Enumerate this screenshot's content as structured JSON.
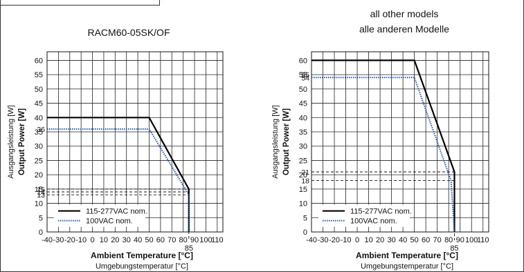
{
  "charts": [
    {
      "title_lines": [
        "RACM60-05SK/OF"
      ],
      "ylabel_lines": [
        "Output Power [W]",
        "Ausgangsleistung [W]"
      ],
      "xlabel_lines": [
        "Ambient Temperature [°C]",
        "Umgebungstemperatur [°C]"
      ],
      "xticks": [
        -40,
        -30,
        -20,
        -10,
        0,
        10,
        20,
        30,
        40,
        50,
        60,
        70,
        80,
        90,
        100,
        110
      ],
      "yticks": [
        0,
        5,
        10,
        15,
        20,
        25,
        30,
        35,
        40,
        45,
        50,
        55,
        60
      ],
      "xlim": [
        -40,
        115
      ],
      "ylim": [
        0,
        63
      ],
      "series": [
        {
          "name": "115-277VAC nom.",
          "color": "#000000",
          "style": "solid",
          "points": [
            [
              -40,
              40
            ],
            [
              50,
              40
            ],
            [
              85,
              15
            ],
            [
              85,
              0
            ]
          ]
        },
        {
          "name": "100VAC nom.",
          "color": "#1f4fb5",
          "style": "dotted",
          "points": [
            [
              -40,
              36
            ],
            [
              50,
              36
            ],
            [
              85,
              13
            ],
            [
              85,
              0
            ]
          ]
        }
      ],
      "hrefs": [
        {
          "y": 15,
          "label": "15",
          "to_x": 85
        },
        {
          "y": 14,
          "label": "14",
          "to_x": 85
        },
        {
          "y": 13,
          "label": "13",
          "to_x": 85
        }
      ],
      "side_labels": [
        {
          "y": 36,
          "label": "36"
        }
      ],
      "vref": {
        "x": 85,
        "label": "85"
      }
    },
    {
      "title_lines": [
        "all other models",
        "alle anderen Modelle"
      ],
      "ylabel_lines": [
        "Output Power [W]",
        "Ausgangsleistung [W]"
      ],
      "xlabel_lines": [
        "Ambient Temperature [°C]",
        "Umgebungstemperatur [°C]"
      ],
      "xticks": [
        -40,
        -30,
        -20,
        -10,
        0,
        10,
        20,
        30,
        40,
        50,
        60,
        70,
        80,
        90,
        100,
        110
      ],
      "yticks": [
        0,
        5,
        10,
        15,
        20,
        25,
        30,
        35,
        40,
        45,
        50,
        55,
        60
      ],
      "xlim": [
        -40,
        115
      ],
      "ylim": [
        0,
        63
      ],
      "series": [
        {
          "name": "115-277VAC nom.",
          "color": "#000000",
          "style": "solid",
          "points": [
            [
              -40,
              60
            ],
            [
              50,
              60
            ],
            [
              85,
              21
            ],
            [
              85,
              0
            ]
          ]
        },
        {
          "name": "100VAC nom.",
          "color": "#1f4fb5",
          "style": "dotted",
          "points": [
            [
              -40,
              54
            ],
            [
              50,
              54
            ],
            [
              82,
              18
            ],
            [
              85,
              0
            ]
          ]
        }
      ],
      "hrefs": [
        {
          "y": 21,
          "label": "21",
          "to_x": 85
        },
        {
          "y": 18,
          "label": "18",
          "to_x": 85
        }
      ],
      "side_labels": [
        {
          "y": 55,
          "label": "55"
        },
        {
          "y": 54,
          "label": "54"
        }
      ],
      "vref": {
        "x": 85,
        "label": "85"
      }
    }
  ]
}
